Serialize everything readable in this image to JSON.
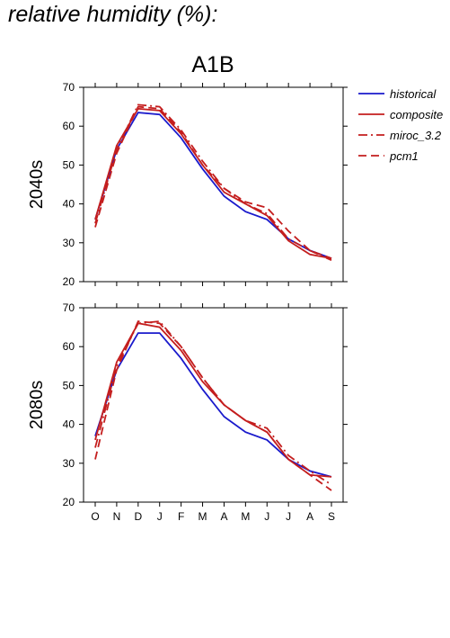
{
  "figure_title": "relative humidity (%):",
  "colors": {
    "historical": "#1a1acc",
    "model": "#c41e1e",
    "axis": "#000000"
  },
  "chart_data": {
    "type": "line",
    "title": "A1B",
    "x": [
      "O",
      "N",
      "D",
      "J",
      "F",
      "M",
      "A",
      "M",
      "J",
      "J",
      "A",
      "S"
    ],
    "ylim": [
      20,
      70
    ],
    "yticks": [
      20,
      30,
      40,
      50,
      60,
      70
    ],
    "legend": {
      "position": "right",
      "entries": [
        "historical",
        "composite",
        "miroc_3.2",
        "pcm1"
      ]
    },
    "panels": [
      {
        "label": "2040s",
        "series": [
          {
            "name": "historical",
            "style": "solid",
            "values": [
              36,
              54,
              63.5,
              63,
              57,
              49,
              42,
              38,
              36,
              31,
              28,
              26
            ]
          },
          {
            "name": "composite",
            "style": "solid",
            "values": [
              36,
              55,
              64.5,
              64,
              58,
              50,
              43,
              40,
              37,
              30.5,
              27,
              26
            ]
          },
          {
            "name": "miroc_3.2",
            "style": "dashdot",
            "values": [
              35,
              54,
              65.5,
              65,
              59,
              51,
              44,
              40,
              37.5,
              31,
              28,
              25.5
            ]
          },
          {
            "name": "pcm1",
            "style": "dashed",
            "values": [
              34,
              53,
              65,
              64.5,
              58.5,
              50,
              44,
              40.5,
              39,
              33,
              28,
              26
            ]
          }
        ]
      },
      {
        "label": "2080s",
        "series": [
          {
            "name": "historical",
            "style": "solid",
            "values": [
              37,
              54,
              63.5,
              63.5,
              57,
              49,
              42,
              38,
              36,
              31,
              28,
              26.5
            ]
          },
          {
            "name": "composite",
            "style": "solid",
            "values": [
              36,
              56,
              66,
              65,
              59,
              51,
              45,
              41,
              38,
              31,
              27,
              26.5
            ]
          },
          {
            "name": "miroc_3.2",
            "style": "dashdot",
            "values": [
              34,
              55,
              66,
              66.5,
              60,
              52,
              45,
              41,
              39,
              32,
              28,
              24.5
            ]
          },
          {
            "name": "pcm1",
            "style": "dashed",
            "values": [
              31,
              54,
              66.5,
              66,
              60,
              52,
              45,
              41,
              38,
              31,
              27,
              23
            ]
          }
        ]
      }
    ]
  }
}
